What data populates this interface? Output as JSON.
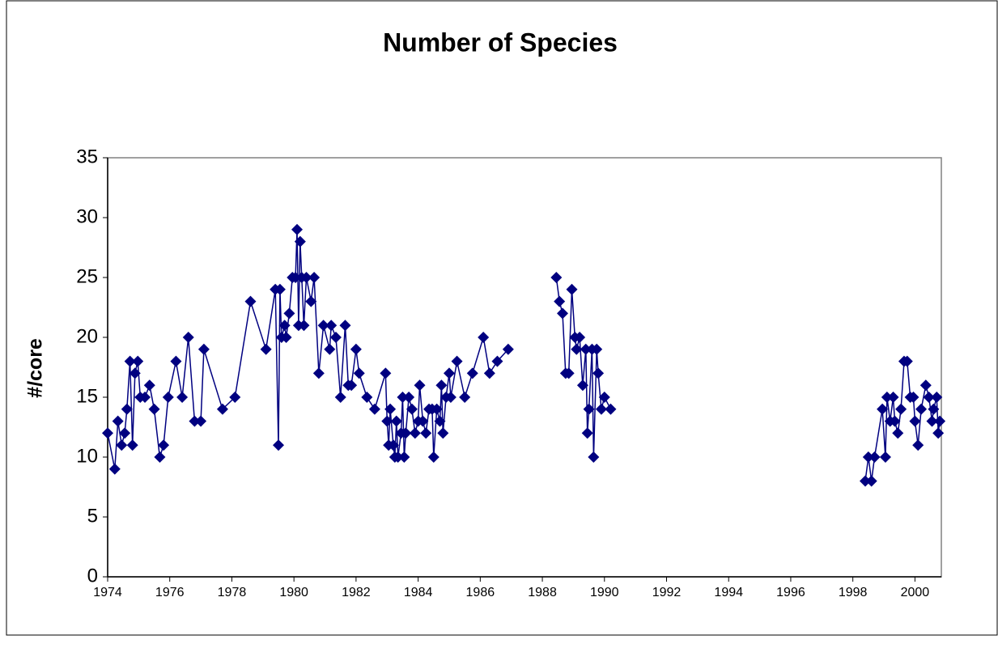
{
  "chart_data": {
    "type": "line",
    "title": "Number of Species",
    "y_label": "#/core",
    "x": [
      1974.0,
      1974.23,
      1974.33,
      1974.45,
      1974.55,
      1974.62,
      1974.72,
      1974.8,
      1974.88,
      1974.97,
      1975.05,
      1975.2,
      1975.35,
      1975.5,
      1975.68,
      1975.8,
      1975.95,
      1976.2,
      1976.4,
      1976.6,
      1976.8,
      1977.0,
      1977.1,
      1977.7,
      1978.1,
      1978.6,
      1979.1,
      1979.4,
      1979.5,
      1979.55,
      1979.6,
      1979.7,
      1979.75,
      1979.85,
      1979.95,
      1980.05,
      1980.1,
      1980.15,
      1980.2,
      1980.25,
      1980.32,
      1980.4,
      1980.55,
      1980.65,
      1980.8,
      1980.95,
      1981.15,
      1981.2,
      1981.35,
      1981.5,
      1981.65,
      1981.75,
      1981.85,
      1982.0,
      1982.1,
      1982.35,
      1982.6,
      1982.95,
      1983.0,
      1983.05,
      1983.1,
      1983.2,
      1983.25,
      1983.3,
      1983.35,
      1983.45,
      1983.5,
      1983.55,
      1983.6,
      1983.7,
      1983.8,
      1983.9,
      1984.0,
      1984.05,
      1984.15,
      1984.25,
      1984.35,
      1984.45,
      1984.5,
      1984.6,
      1984.7,
      1984.75,
      1984.8,
      1984.9,
      1985.0,
      1985.05,
      1985.25,
      1985.5,
      1985.75,
      1986.1,
      1986.3,
      1986.55,
      1986.9,
      null,
      1988.45,
      1988.55,
      1988.65,
      1988.75,
      1988.85,
      1988.95,
      1989.05,
      1989.1,
      1989.2,
      1989.3,
      1989.4,
      1989.45,
      1989.5,
      1989.6,
      1989.65,
      1989.75,
      1989.8,
      1989.9,
      1990.0,
      1990.2,
      null,
      1998.4,
      1998.5,
      1998.6,
      1998.7,
      1998.95,
      1999.05,
      1999.1,
      1999.2,
      1999.3,
      1999.35,
      1999.45,
      1999.55,
      1999.65,
      1999.75,
      1999.85,
      1999.95,
      2000.0,
      2000.1,
      2000.2,
      2000.35,
      2000.45,
      2000.55,
      2000.6,
      2000.7,
      2000.75,
      2000.8
    ],
    "series": [
      {
        "color": "#000080",
        "values": [
          12,
          9,
          13,
          11,
          12,
          14,
          18,
          11,
          17,
          18,
          15,
          15,
          16,
          14,
          10,
          11,
          15,
          18,
          15,
          20,
          13,
          13,
          19,
          14,
          15,
          23,
          19,
          24,
          11,
          24,
          20,
          21,
          20,
          22,
          25,
          25,
          29,
          21,
          28,
          25,
          21,
          25,
          23,
          25,
          17,
          21,
          19,
          21,
          20,
          15,
          21,
          16,
          16,
          19,
          17,
          15,
          14,
          17,
          13,
          11,
          14,
          11,
          10,
          13,
          10,
          12,
          15,
          10,
          12,
          15,
          14,
          12,
          13,
          16,
          13,
          12,
          14,
          14,
          10,
          14,
          13,
          16,
          12,
          15,
          17,
          15,
          18,
          15,
          17,
          20,
          17,
          18,
          19,
          null,
          25,
          23,
          22,
          17,
          17,
          24,
          20,
          19,
          20,
          16,
          19,
          12,
          14,
          19,
          10,
          19,
          17,
          14,
          15,
          14,
          null,
          8,
          10,
          8,
          10,
          14,
          10,
          15,
          13,
          15,
          13,
          12,
          14,
          18,
          18,
          15,
          15,
          13,
          11,
          14,
          16,
          15,
          13,
          14,
          15,
          12,
          13
        ]
      }
    ],
    "xlim": [
      1974,
      2000.85
    ],
    "ylim": [
      0,
      35
    ],
    "xticks": [
      1974,
      1976,
      1978,
      1980,
      1982,
      1984,
      1986,
      1988,
      1990,
      1992,
      1994,
      1996,
      1998,
      2000
    ],
    "yticks": [
      0,
      5,
      10,
      15,
      20,
      25,
      30,
      35
    ],
    "grid": false
  }
}
